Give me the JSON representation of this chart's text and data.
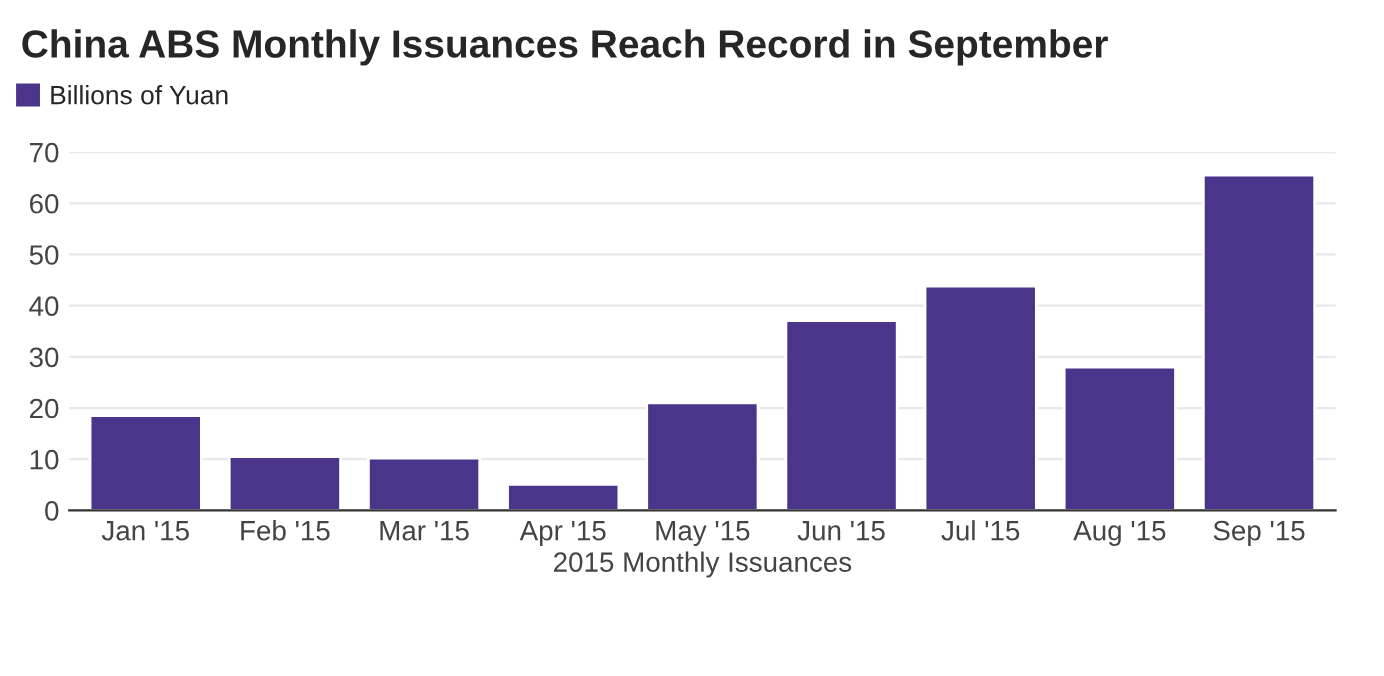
{
  "chart_data": {
    "type": "bar",
    "title": "China ABS Monthly Issuances Reach Record in September",
    "xlabel": "2015 Monthly Issuances",
    "categories": [
      "Jan '15",
      "Feb '15",
      "Mar '15",
      "Apr '15",
      "May '15",
      "Jun '15",
      "Jul '15",
      "Aug '15",
      "Sep '15"
    ],
    "series": [
      {
        "name": "Billions of Yuan",
        "color": "#4b358a",
        "values": [
          18.5,
          10.5,
          10.2,
          5.1,
          21.0,
          37.1,
          43.8,
          28.0,
          65.5
        ]
      }
    ],
    "ylim": [
      0,
      70
    ],
    "yticks": [
      0,
      10,
      20,
      30,
      40,
      50,
      60,
      70
    ],
    "grid": "y",
    "legend": "top left"
  }
}
